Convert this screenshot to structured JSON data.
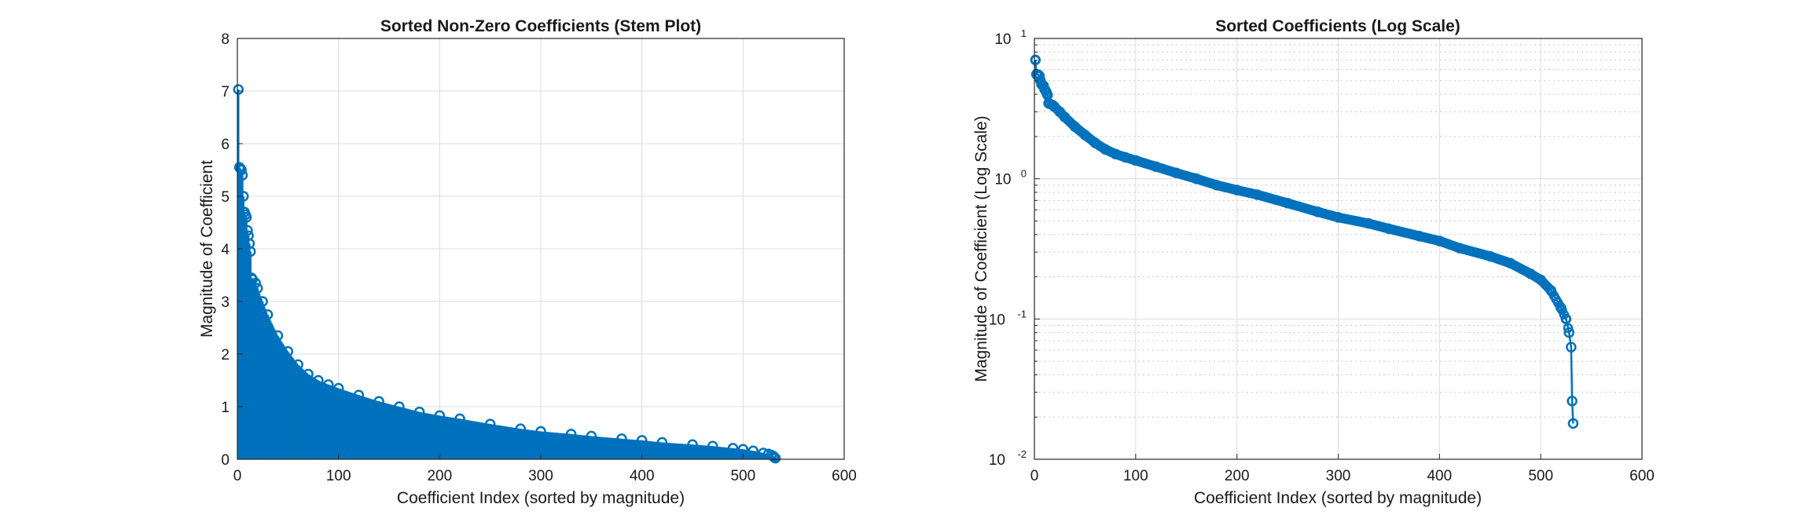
{
  "colors": {
    "series": "#0072BD",
    "axis": "#262626",
    "grid": "#dcdcdc",
    "background": "#ffffff"
  },
  "chart_data": [
    {
      "type": "stem",
      "title": "Sorted Non-Zero Coefficients (Stem Plot)",
      "xlabel": "Coefficient Index (sorted by magnitude)",
      "ylabel": "Magnitude of Coefficient",
      "xlim": [
        0,
        600
      ],
      "ylim": [
        0,
        8
      ],
      "xticks": [
        "0",
        "100",
        "200",
        "300",
        "400",
        "500",
        "600"
      ],
      "yticks": [
        "0",
        "1",
        "2",
        "3",
        "4",
        "5",
        "6",
        "7",
        "8"
      ],
      "grid": true,
      "marker": "circle",
      "series": [
        {
          "x": [
            1,
            2,
            3,
            4,
            5,
            6,
            7,
            8,
            9,
            10,
            11,
            12,
            13,
            14,
            15,
            18,
            20,
            25,
            30,
            40,
            50,
            60,
            70,
            80,
            90,
            100,
            120,
            140,
            160,
            180,
            200,
            220,
            250,
            280,
            300,
            330,
            350,
            380,
            400,
            420,
            450,
            470,
            490,
            500,
            510,
            520,
            525,
            528,
            530,
            531,
            532
          ],
          "y": [
            7.03,
            5.55,
            5.53,
            5.5,
            5.4,
            5.0,
            4.7,
            4.65,
            4.6,
            4.35,
            4.25,
            4.1,
            3.95,
            3.45,
            3.42,
            3.35,
            3.25,
            3.0,
            2.75,
            2.35,
            2.05,
            1.8,
            1.62,
            1.5,
            1.42,
            1.35,
            1.22,
            1.1,
            1.0,
            0.9,
            0.83,
            0.77,
            0.67,
            0.58,
            0.53,
            0.48,
            0.44,
            0.39,
            0.36,
            0.32,
            0.28,
            0.25,
            0.21,
            0.19,
            0.16,
            0.12,
            0.1,
            0.08,
            0.06,
            0.03,
            0.02
          ]
        }
      ]
    },
    {
      "type": "line",
      "title": "Sorted Coefficients (Log Scale)",
      "xlabel": "Coefficient Index (sorted by magnitude)",
      "ylabel": "Magnitude of Coefficient (Log Scale)",
      "xlim": [
        0,
        600
      ],
      "ylim": [
        0.01,
        10
      ],
      "yscale": "log",
      "xticks": [
        "0",
        "100",
        "200",
        "300",
        "400",
        "500",
        "600"
      ],
      "yticks": [
        {
          "base": "10",
          "exp": "-2"
        },
        {
          "base": "10",
          "exp": "-1"
        },
        {
          "base": "10",
          "exp": "0"
        },
        {
          "base": "10",
          "exp": "1"
        }
      ],
      "grid": true,
      "minor_grid": true,
      "marker": "circle",
      "series": [
        {
          "x": [
            1,
            2,
            3,
            4,
            5,
            6,
            7,
            8,
            9,
            10,
            11,
            12,
            13,
            14,
            15,
            18,
            20,
            25,
            30,
            40,
            50,
            60,
            70,
            80,
            90,
            100,
            120,
            140,
            160,
            180,
            200,
            220,
            250,
            280,
            300,
            330,
            350,
            380,
            400,
            420,
            450,
            470,
            490,
            500,
            510,
            520,
            525,
            528,
            530,
            531,
            532
          ],
          "y": [
            7.03,
            5.55,
            5.53,
            5.5,
            5.4,
            5.0,
            4.7,
            4.65,
            4.6,
            4.35,
            4.25,
            4.1,
            3.95,
            3.45,
            3.42,
            3.35,
            3.25,
            3.0,
            2.75,
            2.35,
            2.05,
            1.8,
            1.62,
            1.5,
            1.42,
            1.35,
            1.22,
            1.1,
            1.0,
            0.9,
            0.83,
            0.77,
            0.67,
            0.58,
            0.53,
            0.48,
            0.44,
            0.39,
            0.36,
            0.32,
            0.28,
            0.25,
            0.21,
            0.19,
            0.16,
            0.12,
            0.1,
            0.08,
            0.063,
            0.026,
            0.018
          ]
        }
      ]
    }
  ]
}
